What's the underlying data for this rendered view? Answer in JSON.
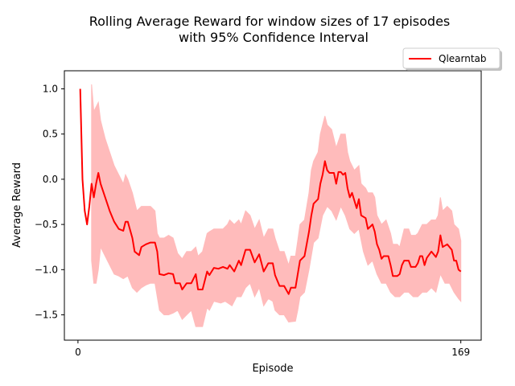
{
  "chart_data": {
    "type": "line",
    "title_line1": "Rolling Average Reward for window sizes of 17 episodes",
    "title_line2": "with 95% Confidence Interval",
    "xlabel": "Episode",
    "ylabel": "Average Reward",
    "xlim": [
      -6,
      178
    ],
    "ylim": [
      -1.78,
      1.2
    ],
    "x_ticks": [
      0,
      169
    ],
    "x_tick_labels": [
      "0",
      "169"
    ],
    "y_ticks": [
      1.0,
      0.5,
      0.0,
      -0.5,
      -1.0,
      -1.5
    ],
    "y_tick_labels": [
      "1.0",
      "0.5",
      "0.0",
      "−0.5",
      "−1.0",
      "−1.5"
    ],
    "grid": false,
    "legend_position": "upper-right-outside",
    "series": [
      {
        "name": "Qlearntab",
        "color": "#ff0000",
        "band_color": "#ffbbbb",
        "band_label": "95% Confidence Interval",
        "points": [
          [
            1,
            1.0
          ],
          [
            2,
            0.0
          ],
          [
            3,
            -0.35
          ],
          [
            4,
            -0.5
          ],
          [
            5,
            -0.3
          ],
          [
            6,
            -0.05
          ],
          [
            7,
            -0.2
          ],
          [
            8,
            -0.05
          ],
          [
            9,
            0.07
          ],
          [
            10,
            -0.05
          ],
          [
            12,
            -0.2
          ],
          [
            14,
            -0.35
          ],
          [
            16,
            -0.47
          ],
          [
            18,
            -0.55
          ],
          [
            20,
            -0.57
          ],
          [
            21,
            -0.47
          ],
          [
            22,
            -0.47
          ],
          [
            24,
            -0.65
          ],
          [
            25,
            -0.8
          ],
          [
            27,
            -0.84
          ],
          [
            28,
            -0.75
          ],
          [
            30,
            -0.72
          ],
          [
            32,
            -0.7
          ],
          [
            34,
            -0.7
          ],
          [
            35,
            -0.8
          ],
          [
            36,
            -1.05
          ],
          [
            38,
            -1.06
          ],
          [
            40,
            -1.04
          ],
          [
            42,
            -1.05
          ],
          [
            43,
            -1.15
          ],
          [
            45,
            -1.15
          ],
          [
            46,
            -1.22
          ],
          [
            48,
            -1.15
          ],
          [
            50,
            -1.15
          ],
          [
            52,
            -1.05
          ],
          [
            53,
            -1.22
          ],
          [
            55,
            -1.22
          ],
          [
            57,
            -1.02
          ],
          [
            58,
            -1.06
          ],
          [
            60,
            -0.98
          ],
          [
            62,
            -0.99
          ],
          [
            64,
            -0.97
          ],
          [
            66,
            -0.99
          ],
          [
            67,
            -0.95
          ],
          [
            69,
            -1.02
          ],
          [
            71,
            -0.9
          ],
          [
            72,
            -0.95
          ],
          [
            74,
            -0.78
          ],
          [
            76,
            -0.78
          ],
          [
            78,
            -0.92
          ],
          [
            80,
            -0.83
          ],
          [
            82,
            -1.02
          ],
          [
            84,
            -0.93
          ],
          [
            86,
            -0.93
          ],
          [
            87,
            -1.06
          ],
          [
            89,
            -1.18
          ],
          [
            91,
            -1.18
          ],
          [
            93,
            -1.27
          ],
          [
            94,
            -1.2
          ],
          [
            96,
            -1.2
          ],
          [
            97,
            -1.05
          ],
          [
            98,
            -0.9
          ],
          [
            100,
            -0.85
          ],
          [
            102,
            -0.58
          ],
          [
            103,
            -0.4
          ],
          [
            104,
            -0.27
          ],
          [
            106,
            -0.22
          ],
          [
            107,
            -0.05
          ],
          [
            108,
            0.05
          ],
          [
            109,
            0.2
          ],
          [
            110,
            0.1
          ],
          [
            111,
            0.07
          ],
          [
            113,
            0.07
          ],
          [
            114,
            -0.05
          ],
          [
            115,
            0.08
          ],
          [
            116,
            0.08
          ],
          [
            117,
            0.05
          ],
          [
            118,
            0.07
          ],
          [
            119,
            -0.1
          ],
          [
            120,
            -0.2
          ],
          [
            121,
            -0.15
          ],
          [
            123,
            -0.32
          ],
          [
            124,
            -0.22
          ],
          [
            125,
            -0.4
          ],
          [
            127,
            -0.43
          ],
          [
            128,
            -0.55
          ],
          [
            130,
            -0.5
          ],
          [
            131,
            -0.58
          ],
          [
            132,
            -0.72
          ],
          [
            133,
            -0.78
          ],
          [
            134,
            -0.88
          ],
          [
            135,
            -0.85
          ],
          [
            137,
            -0.85
          ],
          [
            138,
            -0.95
          ],
          [
            139,
            -1.07
          ],
          [
            141,
            -1.07
          ],
          [
            142,
            -1.05
          ],
          [
            143,
            -0.95
          ],
          [
            144,
            -0.9
          ],
          [
            146,
            -0.9
          ],
          [
            147,
            -0.97
          ],
          [
            149,
            -0.97
          ],
          [
            150,
            -0.93
          ],
          [
            151,
            -0.85
          ],
          [
            152,
            -0.85
          ],
          [
            153,
            -0.95
          ],
          [
            154,
            -0.87
          ],
          [
            156,
            -0.8
          ],
          [
            158,
            -0.86
          ],
          [
            159,
            -0.8
          ],
          [
            160,
            -0.62
          ],
          [
            161,
            -0.75
          ],
          [
            163,
            -0.72
          ],
          [
            165,
            -0.78
          ],
          [
            166,
            -0.9
          ],
          [
            167,
            -0.9
          ],
          [
            168,
            -1.0
          ],
          [
            169,
            -1.02
          ]
        ],
        "band_lower": [
          [
            6,
            -0.9
          ],
          [
            7,
            -1.15
          ],
          [
            8,
            -1.15
          ],
          [
            9,
            -1.0
          ],
          [
            10,
            -0.75
          ],
          [
            12,
            -0.85
          ],
          [
            14,
            -0.95
          ],
          [
            16,
            -1.05
          ],
          [
            18,
            -1.07
          ],
          [
            20,
            -1.1
          ],
          [
            22,
            -1.07
          ],
          [
            24,
            -1.2
          ],
          [
            26,
            -1.25
          ],
          [
            28,
            -1.2
          ],
          [
            30,
            -1.17
          ],
          [
            32,
            -1.15
          ],
          [
            34,
            -1.15
          ],
          [
            36,
            -1.45
          ],
          [
            38,
            -1.5
          ],
          [
            40,
            -1.5
          ],
          [
            42,
            -1.48
          ],
          [
            44,
            -1.45
          ],
          [
            46,
            -1.55
          ],
          [
            48,
            -1.5
          ],
          [
            50,
            -1.45
          ],
          [
            52,
            -1.63
          ],
          [
            55,
            -1.63
          ],
          [
            57,
            -1.42
          ],
          [
            58,
            -1.45
          ],
          [
            60,
            -1.35
          ],
          [
            63,
            -1.37
          ],
          [
            65,
            -1.35
          ],
          [
            68,
            -1.4
          ],
          [
            70,
            -1.3
          ],
          [
            72,
            -1.3
          ],
          [
            74,
            -1.2
          ],
          [
            76,
            -1.15
          ],
          [
            78,
            -1.3
          ],
          [
            80,
            -1.2
          ],
          [
            82,
            -1.4
          ],
          [
            84,
            -1.32
          ],
          [
            86,
            -1.35
          ],
          [
            87,
            -1.45
          ],
          [
            89,
            -1.5
          ],
          [
            91,
            -1.5
          ],
          [
            93,
            -1.58
          ],
          [
            96,
            -1.57
          ],
          [
            97,
            -1.45
          ],
          [
            98,
            -1.3
          ],
          [
            100,
            -1.25
          ],
          [
            102,
            -1.0
          ],
          [
            104,
            -0.7
          ],
          [
            106,
            -0.65
          ],
          [
            108,
            -0.4
          ],
          [
            110,
            -0.3
          ],
          [
            112,
            -0.35
          ],
          [
            114,
            -0.45
          ],
          [
            116,
            -0.3
          ],
          [
            118,
            -0.4
          ],
          [
            120,
            -0.55
          ],
          [
            122,
            -0.6
          ],
          [
            124,
            -0.55
          ],
          [
            126,
            -0.8
          ],
          [
            128,
            -0.95
          ],
          [
            130,
            -0.9
          ],
          [
            132,
            -1.05
          ],
          [
            134,
            -1.15
          ],
          [
            136,
            -1.15
          ],
          [
            138,
            -1.25
          ],
          [
            140,
            -1.3
          ],
          [
            142,
            -1.3
          ],
          [
            144,
            -1.25
          ],
          [
            146,
            -1.25
          ],
          [
            148,
            -1.3
          ],
          [
            150,
            -1.3
          ],
          [
            152,
            -1.25
          ],
          [
            154,
            -1.25
          ],
          [
            156,
            -1.2
          ],
          [
            158,
            -1.25
          ],
          [
            160,
            -1.05
          ],
          [
            162,
            -1.15
          ],
          [
            164,
            -1.15
          ],
          [
            166,
            -1.25
          ],
          [
            168,
            -1.32
          ],
          [
            169,
            -1.35
          ]
        ],
        "band_upper": [
          [
            6,
            1.05
          ],
          [
            7,
            0.75
          ],
          [
            8,
            0.8
          ],
          [
            9,
            0.85
          ],
          [
            10,
            0.65
          ],
          [
            12,
            0.45
          ],
          [
            14,
            0.3
          ],
          [
            16,
            0.15
          ],
          [
            18,
            0.05
          ],
          [
            20,
            -0.05
          ],
          [
            21,
            0.05
          ],
          [
            22,
            0.0
          ],
          [
            24,
            -0.15
          ],
          [
            26,
            -0.35
          ],
          [
            28,
            -0.3
          ],
          [
            30,
            -0.3
          ],
          [
            32,
            -0.3
          ],
          [
            34,
            -0.35
          ],
          [
            35,
            -0.6
          ],
          [
            36,
            -0.65
          ],
          [
            38,
            -0.65
          ],
          [
            40,
            -0.62
          ],
          [
            42,
            -0.65
          ],
          [
            44,
            -0.82
          ],
          [
            46,
            -0.88
          ],
          [
            48,
            -0.8
          ],
          [
            50,
            -0.8
          ],
          [
            52,
            -0.75
          ],
          [
            53,
            -0.85
          ],
          [
            55,
            -0.8
          ],
          [
            57,
            -0.6
          ],
          [
            58,
            -0.58
          ],
          [
            60,
            -0.55
          ],
          [
            62,
            -0.55
          ],
          [
            64,
            -0.55
          ],
          [
            66,
            -0.5
          ],
          [
            67,
            -0.45
          ],
          [
            69,
            -0.5
          ],
          [
            71,
            -0.45
          ],
          [
            72,
            -0.5
          ],
          [
            74,
            -0.35
          ],
          [
            76,
            -0.4
          ],
          [
            78,
            -0.55
          ],
          [
            80,
            -0.45
          ],
          [
            82,
            -0.65
          ],
          [
            84,
            -0.55
          ],
          [
            86,
            -0.55
          ],
          [
            87,
            -0.65
          ],
          [
            89,
            -0.8
          ],
          [
            91,
            -0.8
          ],
          [
            93,
            -0.95
          ],
          [
            94,
            -0.85
          ],
          [
            96,
            -0.85
          ],
          [
            97,
            -0.68
          ],
          [
            98,
            -0.5
          ],
          [
            100,
            -0.45
          ],
          [
            102,
            -0.15
          ],
          [
            103,
            0.1
          ],
          [
            104,
            0.2
          ],
          [
            106,
            0.3
          ],
          [
            107,
            0.5
          ],
          [
            108,
            0.6
          ],
          [
            109,
            0.7
          ],
          [
            110,
            0.6
          ],
          [
            112,
            0.55
          ],
          [
            114,
            0.35
          ],
          [
            116,
            0.5
          ],
          [
            118,
            0.5
          ],
          [
            119,
            0.3
          ],
          [
            120,
            0.2
          ],
          [
            122,
            0.1
          ],
          [
            124,
            0.15
          ],
          [
            125,
            -0.05
          ],
          [
            127,
            -0.1
          ],
          [
            128,
            -0.15
          ],
          [
            130,
            -0.15
          ],
          [
            131,
            -0.2
          ],
          [
            132,
            -0.4
          ],
          [
            134,
            -0.5
          ],
          [
            136,
            -0.45
          ],
          [
            138,
            -0.6
          ],
          [
            139,
            -0.72
          ],
          [
            141,
            -0.72
          ],
          [
            142,
            -0.75
          ],
          [
            143,
            -0.65
          ],
          [
            144,
            -0.55
          ],
          [
            146,
            -0.55
          ],
          [
            147,
            -0.62
          ],
          [
            149,
            -0.62
          ],
          [
            150,
            -0.6
          ],
          [
            152,
            -0.5
          ],
          [
            154,
            -0.5
          ],
          [
            156,
            -0.45
          ],
          [
            158,
            -0.45
          ],
          [
            159,
            -0.4
          ],
          [
            160,
            -0.2
          ],
          [
            161,
            -0.35
          ],
          [
            163,
            -0.3
          ],
          [
            165,
            -0.35
          ],
          [
            166,
            -0.5
          ],
          [
            168,
            -0.55
          ],
          [
            169,
            -0.68
          ]
        ]
      }
    ]
  }
}
